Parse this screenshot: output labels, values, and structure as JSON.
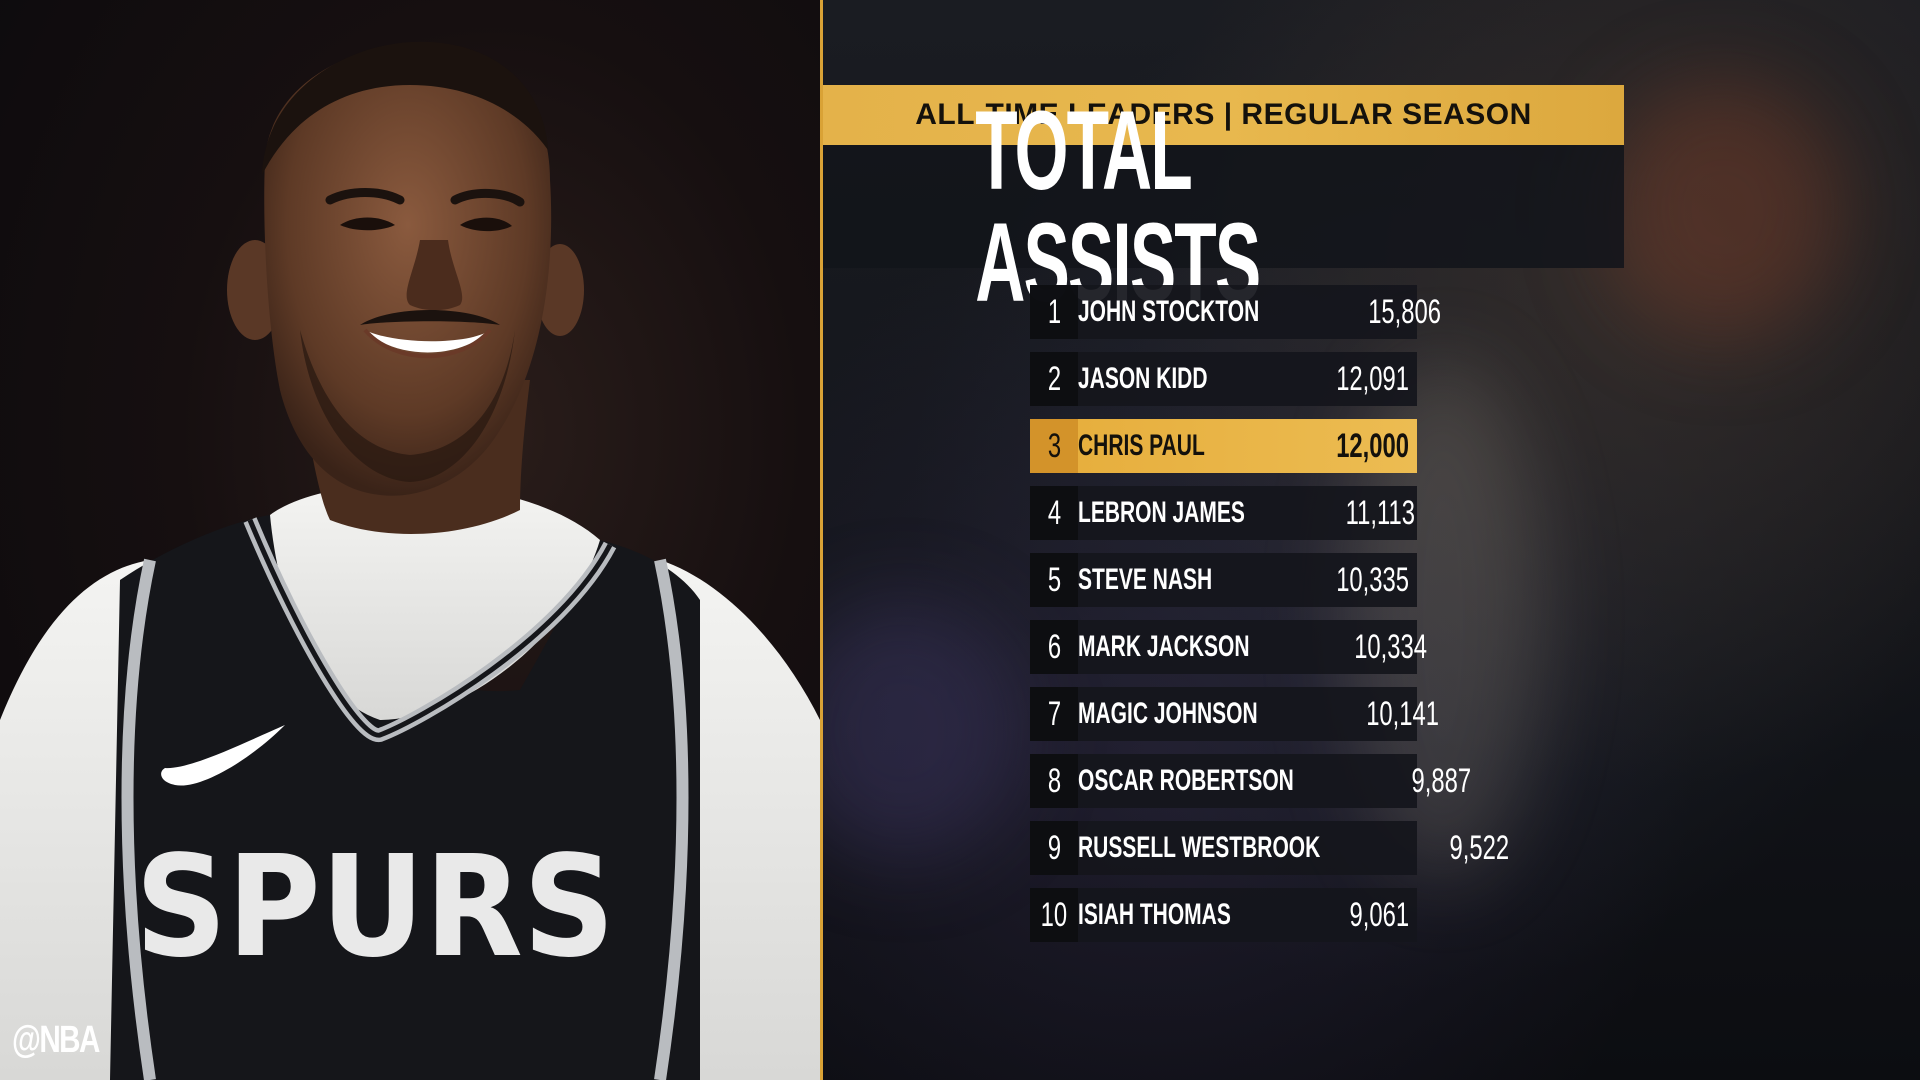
{
  "watermark": "@NBA",
  "header": {
    "subtitle": "ALL-TIME LEADERS | REGULAR SEASON",
    "title": "TOTAL ASSISTS"
  },
  "leaders": [
    {
      "rank": "1",
      "name": "JOHN STOCKTON",
      "value": "15,806"
    },
    {
      "rank": "2",
      "name": "JASON KIDD",
      "value": "12,091"
    },
    {
      "rank": "3",
      "name": "CHRIS PAUL",
      "value": "12,000"
    },
    {
      "rank": "4",
      "name": "LEBRON JAMES",
      "value": "11,113"
    },
    {
      "rank": "5",
      "name": "STEVE NASH",
      "value": "10,335"
    },
    {
      "rank": "6",
      "name": "MARK JACKSON",
      "value": "10,334"
    },
    {
      "rank": "7",
      "name": "MAGIC JOHNSON",
      "value": "10,141"
    },
    {
      "rank": "8",
      "name": "OSCAR ROBERTSON",
      "value": "9,887"
    },
    {
      "rank": "9",
      "name": "RUSSELL WESTBROOK",
      "value": "9,522"
    },
    {
      "rank": "10",
      "name": "ISIAH THOMAS",
      "value": "9,061"
    }
  ],
  "highlighted_rank": "3",
  "jersey": {
    "team_text": "SPURS"
  },
  "colors": {
    "accent_gold": "#e6ad3b",
    "row_dark": "#14161c",
    "jersey_black": "#15161a",
    "jersey_trim": "#b9bcc0"
  }
}
